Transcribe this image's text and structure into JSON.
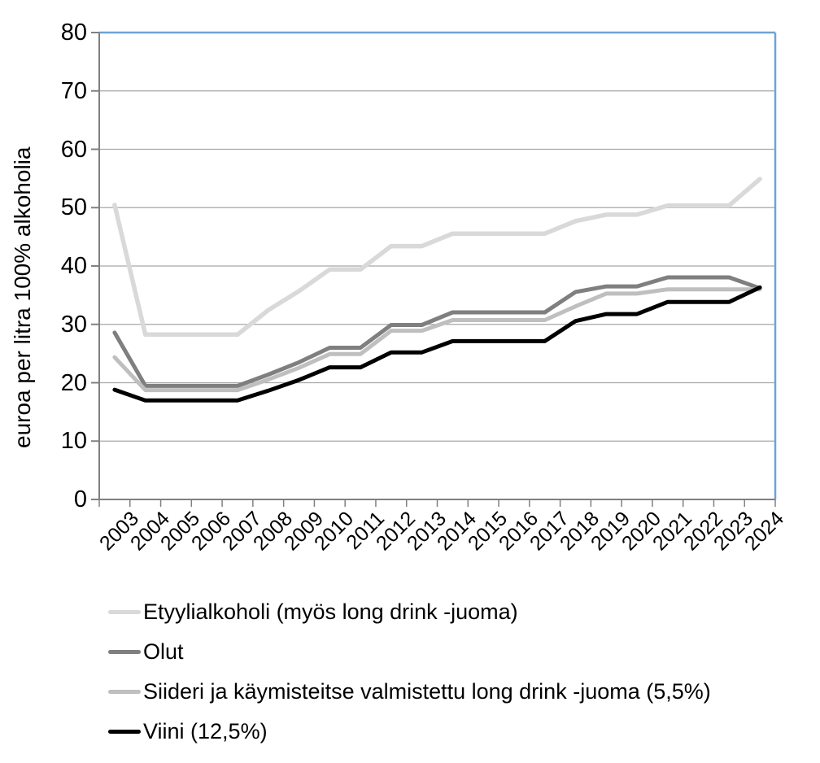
{
  "chart_data": {
    "type": "line",
    "title": "",
    "xlabel": "",
    "ylabel": "euroa per litra 100% alkoholia",
    "ylim": [
      0,
      80
    ],
    "yticks": [
      0,
      10,
      20,
      30,
      40,
      50,
      60,
      70,
      80
    ],
    "grid": "horizontal",
    "legend_position": "bottom-left",
    "categories": [
      "2003",
      "2004",
      "2005",
      "2006",
      "2007",
      "2008",
      "2009",
      "2010",
      "2011",
      "2012",
      "2013",
      "2014",
      "2015",
      "2016",
      "2017",
      "2018",
      "2019",
      "2020",
      "2021",
      "2022",
      "2023",
      "2024"
    ],
    "series": [
      {
        "name": "Etyylialkoholi (myös long drink -juoma)",
        "color": "#D9D9D9",
        "values": [
          50.46,
          28.25,
          28.25,
          28.25,
          28.25,
          32.45,
          35.7,
          39.4,
          39.4,
          43.4,
          43.4,
          45.55,
          45.55,
          45.55,
          45.55,
          47.7,
          48.8,
          48.8,
          50.35,
          50.35,
          50.35,
          54.9
        ]
      },
      {
        "name": "Olut",
        "color": "#7F7F7F",
        "values": [
          28.59,
          19.45,
          19.45,
          19.45,
          19.45,
          21.4,
          23.5,
          26.0,
          26.0,
          29.9,
          29.9,
          32.05,
          32.05,
          32.05,
          32.05,
          35.55,
          36.5,
          36.5,
          38.05,
          38.05,
          38.05,
          36.2
        ]
      },
      {
        "name": "Siideri ja käymisteitse valmistettu long drink -juoma (5,5%)",
        "color": "#BFBFBF",
        "values": [
          24.36,
          18.73,
          18.73,
          18.73,
          18.73,
          20.55,
          22.55,
          24.91,
          24.91,
          28.91,
          28.91,
          30.73,
          30.73,
          30.73,
          30.73,
          33.09,
          35.27,
          35.27,
          36.0,
          36.0,
          36.0,
          36.0
        ]
      },
      {
        "name": "Viini (12,5%)",
        "color": "#000000",
        "values": [
          18.8,
          16.96,
          16.96,
          16.96,
          16.96,
          18.64,
          20.48,
          22.64,
          22.64,
          25.2,
          25.2,
          27.12,
          27.12,
          27.12,
          27.12,
          30.56,
          31.76,
          31.76,
          33.84,
          33.84,
          33.84,
          36.32
        ]
      }
    ],
    "colors": {
      "plot_border": "#6FA3D6",
      "gridline": "#A6A6A6",
      "axis": "#808080"
    }
  }
}
